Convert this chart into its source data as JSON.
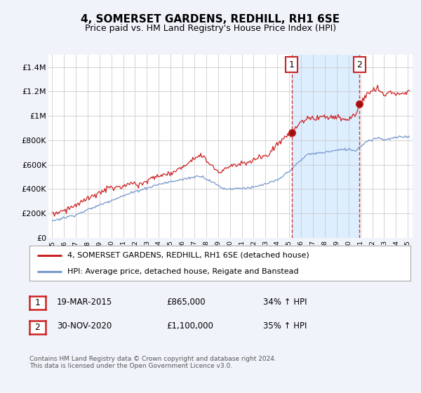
{
  "title": "4, SOMERSET GARDENS, REDHILL, RH1 6SE",
  "subtitle": "Price paid vs. HM Land Registry's House Price Index (HPI)",
  "legend_line1": "4, SOMERSET GARDENS, REDHILL, RH1 6SE (detached house)",
  "legend_line2": "HPI: Average price, detached house, Reigate and Banstead",
  "annotation1_date": "19-MAR-2015",
  "annotation1_price": "£865,000",
  "annotation1_hpi": "34% ↑ HPI",
  "annotation2_date": "30-NOV-2020",
  "annotation2_price": "£1,100,000",
  "annotation2_hpi": "35% ↑ HPI",
  "footnote": "Contains HM Land Registry data © Crown copyright and database right 2024.\nThis data is licensed under the Open Government Licence v3.0.",
  "red_line_color": "#cc2222",
  "blue_line_color": "#7799cc",
  "shade_color": "#ddeeff",
  "background_color": "#f0f4fa",
  "plot_bg_color": "#ffffff",
  "grid_color": "#cccccc",
  "ylim": [
    0,
    1500000
  ],
  "yticks": [
    0,
    200000,
    400000,
    600000,
    800000,
    1000000,
    1200000,
    1400000
  ],
  "ytick_labels": [
    "£0",
    "£200K",
    "£400K",
    "£600K",
    "£800K",
    "£1M",
    "£1.2M",
    "£1.4M"
  ],
  "sale1_x": 2015.21,
  "sale1_y": 865000,
  "sale2_x": 2020.92,
  "sale2_y": 1100000,
  "vline1_x": 2015.21,
  "vline2_x": 2020.92,
  "xlim_left": 1994.7,
  "xlim_right": 2025.4
}
